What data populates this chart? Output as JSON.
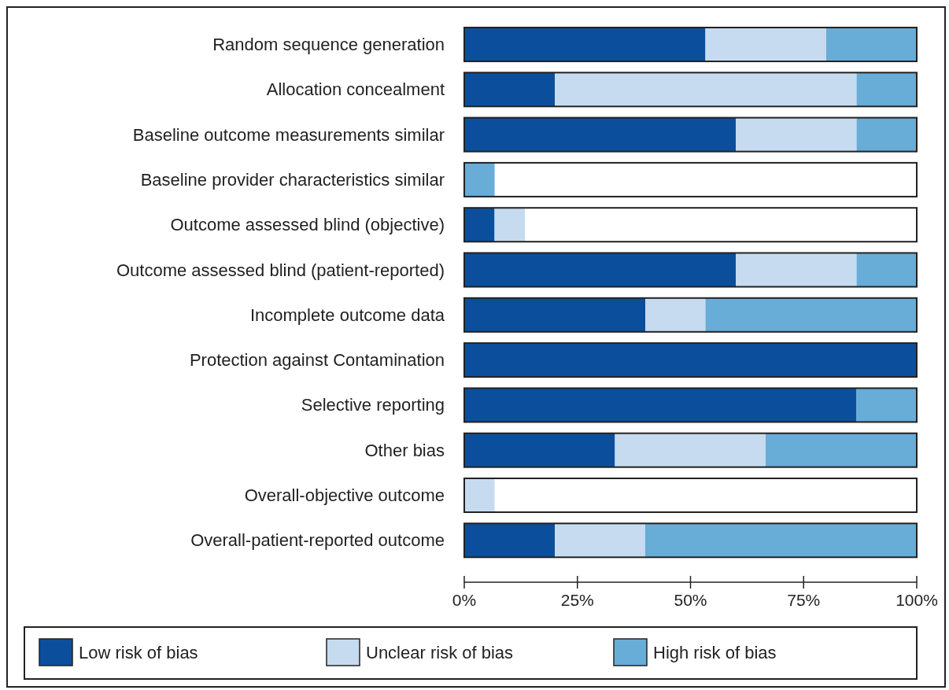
{
  "chart_data": {
    "type": "bar",
    "orientation": "horizontal",
    "stacked": true,
    "categories": [
      "Random sequence generation",
      "Allocation concealment",
      "Baseline outcome measurements similar",
      "Baseline provider characteristics similar",
      "Outcome assessed blind (objective)",
      "Outcome assessed blind (patient-reported)",
      "Incomplete outcome data",
      "Protection against Contamination",
      "Selective reporting",
      "Other bias",
      "Overall-objective outcome",
      "Overall-patient-reported outcome"
    ],
    "series": [
      {
        "name": "Low risk of bias",
        "color": "#0b4f9c",
        "values": [
          53.3,
          20,
          60,
          0,
          6.7,
          60,
          40,
          100,
          86.7,
          33.3,
          0,
          20
        ]
      },
      {
        "name": "Unclear risk of bias",
        "color": "#c6dbef",
        "values": [
          26.7,
          66.7,
          26.7,
          0,
          6.7,
          26.7,
          13.3,
          0,
          0,
          33.3,
          6.7,
          20
        ]
      },
      {
        "name": "High risk of bias",
        "color": "#68acd8",
        "values": [
          20,
          13.3,
          13.3,
          6.7,
          0,
          13.3,
          46.7,
          0,
          13.3,
          33.4,
          0,
          60
        ]
      }
    ],
    "xlim": [
      0,
      100
    ],
    "xticks": [
      {
        "value": 0,
        "label": "0%"
      },
      {
        "value": 25,
        "label": "25%"
      },
      {
        "value": 50,
        "label": "50%"
      },
      {
        "value": 75,
        "label": "75%"
      },
      {
        "value": 100,
        "label": "100%"
      }
    ],
    "grid": false,
    "legend": "bottom"
  }
}
